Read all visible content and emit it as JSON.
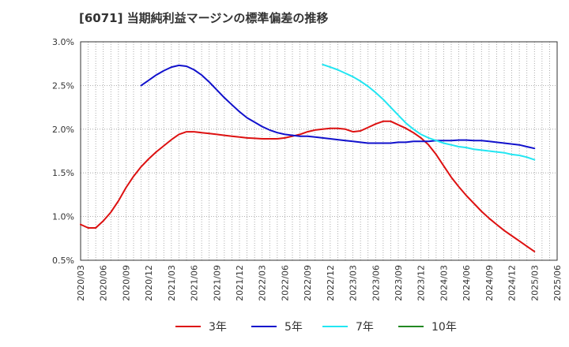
{
  "chart_data": {
    "type": "line",
    "title": "[6071]  当期純利益マージンの標準偏差の推移",
    "xlabel": "",
    "ylabel": "",
    "ylim": [
      0.5,
      3.0
    ],
    "y_ticks": [
      "0.5%",
      "1.0%",
      "1.5%",
      "2.0%",
      "2.5%",
      "3.0%"
    ],
    "y_tick_values": [
      0.5,
      1.0,
      1.5,
      2.0,
      2.5,
      3.0
    ],
    "x_ticks": [
      "2020/03",
      "2020/06",
      "2020/09",
      "2020/12",
      "2021/03",
      "2021/06",
      "2021/09",
      "2021/12",
      "2022/03",
      "2022/06",
      "2022/09",
      "2022/12",
      "2023/03",
      "2023/06",
      "2023/09",
      "2023/12",
      "2024/03",
      "2024/06",
      "2024/09",
      "2024/12",
      "2025/03",
      "2025/06"
    ],
    "grid": true,
    "legend_position": "bottom",
    "series": [
      {
        "name": "3年",
        "color": "#dd1111",
        "x": [
          "2020/03",
          "2020/04",
          "2020/05",
          "2020/06",
          "2020/07",
          "2020/08",
          "2020/09",
          "2020/10",
          "2020/11",
          "2020/12",
          "2021/01",
          "2021/02",
          "2021/03",
          "2021/04",
          "2021/05",
          "2021/06",
          "2021/07",
          "2021/08",
          "2021/09",
          "2021/10",
          "2021/11",
          "2021/12",
          "2022/01",
          "2022/02",
          "2022/03",
          "2022/04",
          "2022/05",
          "2022/06",
          "2022/07",
          "2022/08",
          "2022/09",
          "2022/10",
          "2022/11",
          "2022/12",
          "2023/01",
          "2023/02",
          "2023/03",
          "2023/04",
          "2023/05",
          "2023/06",
          "2023/07",
          "2023/08",
          "2023/09",
          "2023/10",
          "2023/11",
          "2023/12",
          "2024/01",
          "2024/02",
          "2024/03",
          "2024/04",
          "2024/05",
          "2024/06",
          "2024/07",
          "2024/08",
          "2024/09",
          "2024/10",
          "2024/11",
          "2024/12",
          "2025/01",
          "2025/02",
          "2025/03"
        ],
        "values": [
          0.91,
          0.87,
          0.87,
          0.95,
          1.05,
          1.18,
          1.33,
          1.46,
          1.57,
          1.66,
          1.74,
          1.81,
          1.88,
          1.94,
          1.97,
          1.97,
          1.96,
          1.95,
          1.94,
          1.93,
          1.92,
          1.91,
          1.9,
          1.895,
          1.89,
          1.89,
          1.89,
          1.9,
          1.92,
          1.94,
          1.97,
          1.99,
          2.0,
          2.01,
          2.01,
          2.0,
          1.97,
          1.98,
          2.02,
          2.06,
          2.09,
          2.09,
          2.05,
          2.01,
          1.96,
          1.9,
          1.82,
          1.71,
          1.58,
          1.45,
          1.34,
          1.24,
          1.15,
          1.06,
          0.98,
          0.91,
          0.84,
          0.78,
          0.72,
          0.66,
          0.6
        ]
      },
      {
        "name": "5年",
        "color": "#1111cc",
        "x": [
          "2020/11",
          "2020/12",
          "2021/01",
          "2021/02",
          "2021/03",
          "2021/04",
          "2021/05",
          "2021/06",
          "2021/07",
          "2021/08",
          "2021/09",
          "2021/10",
          "2021/11",
          "2021/12",
          "2022/01",
          "2022/02",
          "2022/03",
          "2022/04",
          "2022/05",
          "2022/06",
          "2022/07",
          "2022/08",
          "2022/09",
          "2022/10",
          "2022/11",
          "2022/12",
          "2023/01",
          "2023/02",
          "2023/03",
          "2023/04",
          "2023/05",
          "2023/06",
          "2023/07",
          "2023/08",
          "2023/09",
          "2023/10",
          "2023/11",
          "2023/12",
          "2024/01",
          "2024/02",
          "2024/03",
          "2024/04",
          "2024/05",
          "2024/06",
          "2024/07",
          "2024/08",
          "2024/09",
          "2024/10",
          "2024/11",
          "2024/12",
          "2025/01",
          "2025/02",
          "2025/03"
        ],
        "values": [
          2.5,
          2.56,
          2.62,
          2.67,
          2.71,
          2.73,
          2.72,
          2.68,
          2.62,
          2.54,
          2.45,
          2.36,
          2.28,
          2.2,
          2.13,
          2.08,
          2.03,
          1.99,
          1.96,
          1.94,
          1.93,
          1.92,
          1.92,
          1.91,
          1.9,
          1.89,
          1.88,
          1.87,
          1.86,
          1.85,
          1.84,
          1.84,
          1.84,
          1.84,
          1.85,
          1.85,
          1.86,
          1.86,
          1.86,
          1.87,
          1.87,
          1.87,
          1.875,
          1.875,
          1.87,
          1.87,
          1.86,
          1.85,
          1.84,
          1.83,
          1.82,
          1.8,
          1.78
        ]
      },
      {
        "name": "7年",
        "color": "#22e6f2",
        "x": [
          "2022/11",
          "2022/12",
          "2023/01",
          "2023/02",
          "2023/03",
          "2023/04",
          "2023/05",
          "2023/06",
          "2023/07",
          "2023/08",
          "2023/09",
          "2023/10",
          "2023/11",
          "2023/12",
          "2024/01",
          "2024/02",
          "2024/03",
          "2024/04",
          "2024/05",
          "2024/06",
          "2024/07",
          "2024/08",
          "2024/09",
          "2024/10",
          "2024/11",
          "2024/12",
          "2025/01",
          "2025/02",
          "2025/03"
        ],
        "values": [
          2.74,
          2.71,
          2.68,
          2.64,
          2.6,
          2.55,
          2.49,
          2.42,
          2.34,
          2.25,
          2.16,
          2.07,
          2.0,
          1.94,
          1.9,
          1.87,
          1.84,
          1.82,
          1.8,
          1.79,
          1.77,
          1.76,
          1.75,
          1.74,
          1.73,
          1.71,
          1.7,
          1.68,
          1.65
        ]
      },
      {
        "name": "10年",
        "color": "#228822",
        "x": [],
        "values": []
      }
    ]
  }
}
